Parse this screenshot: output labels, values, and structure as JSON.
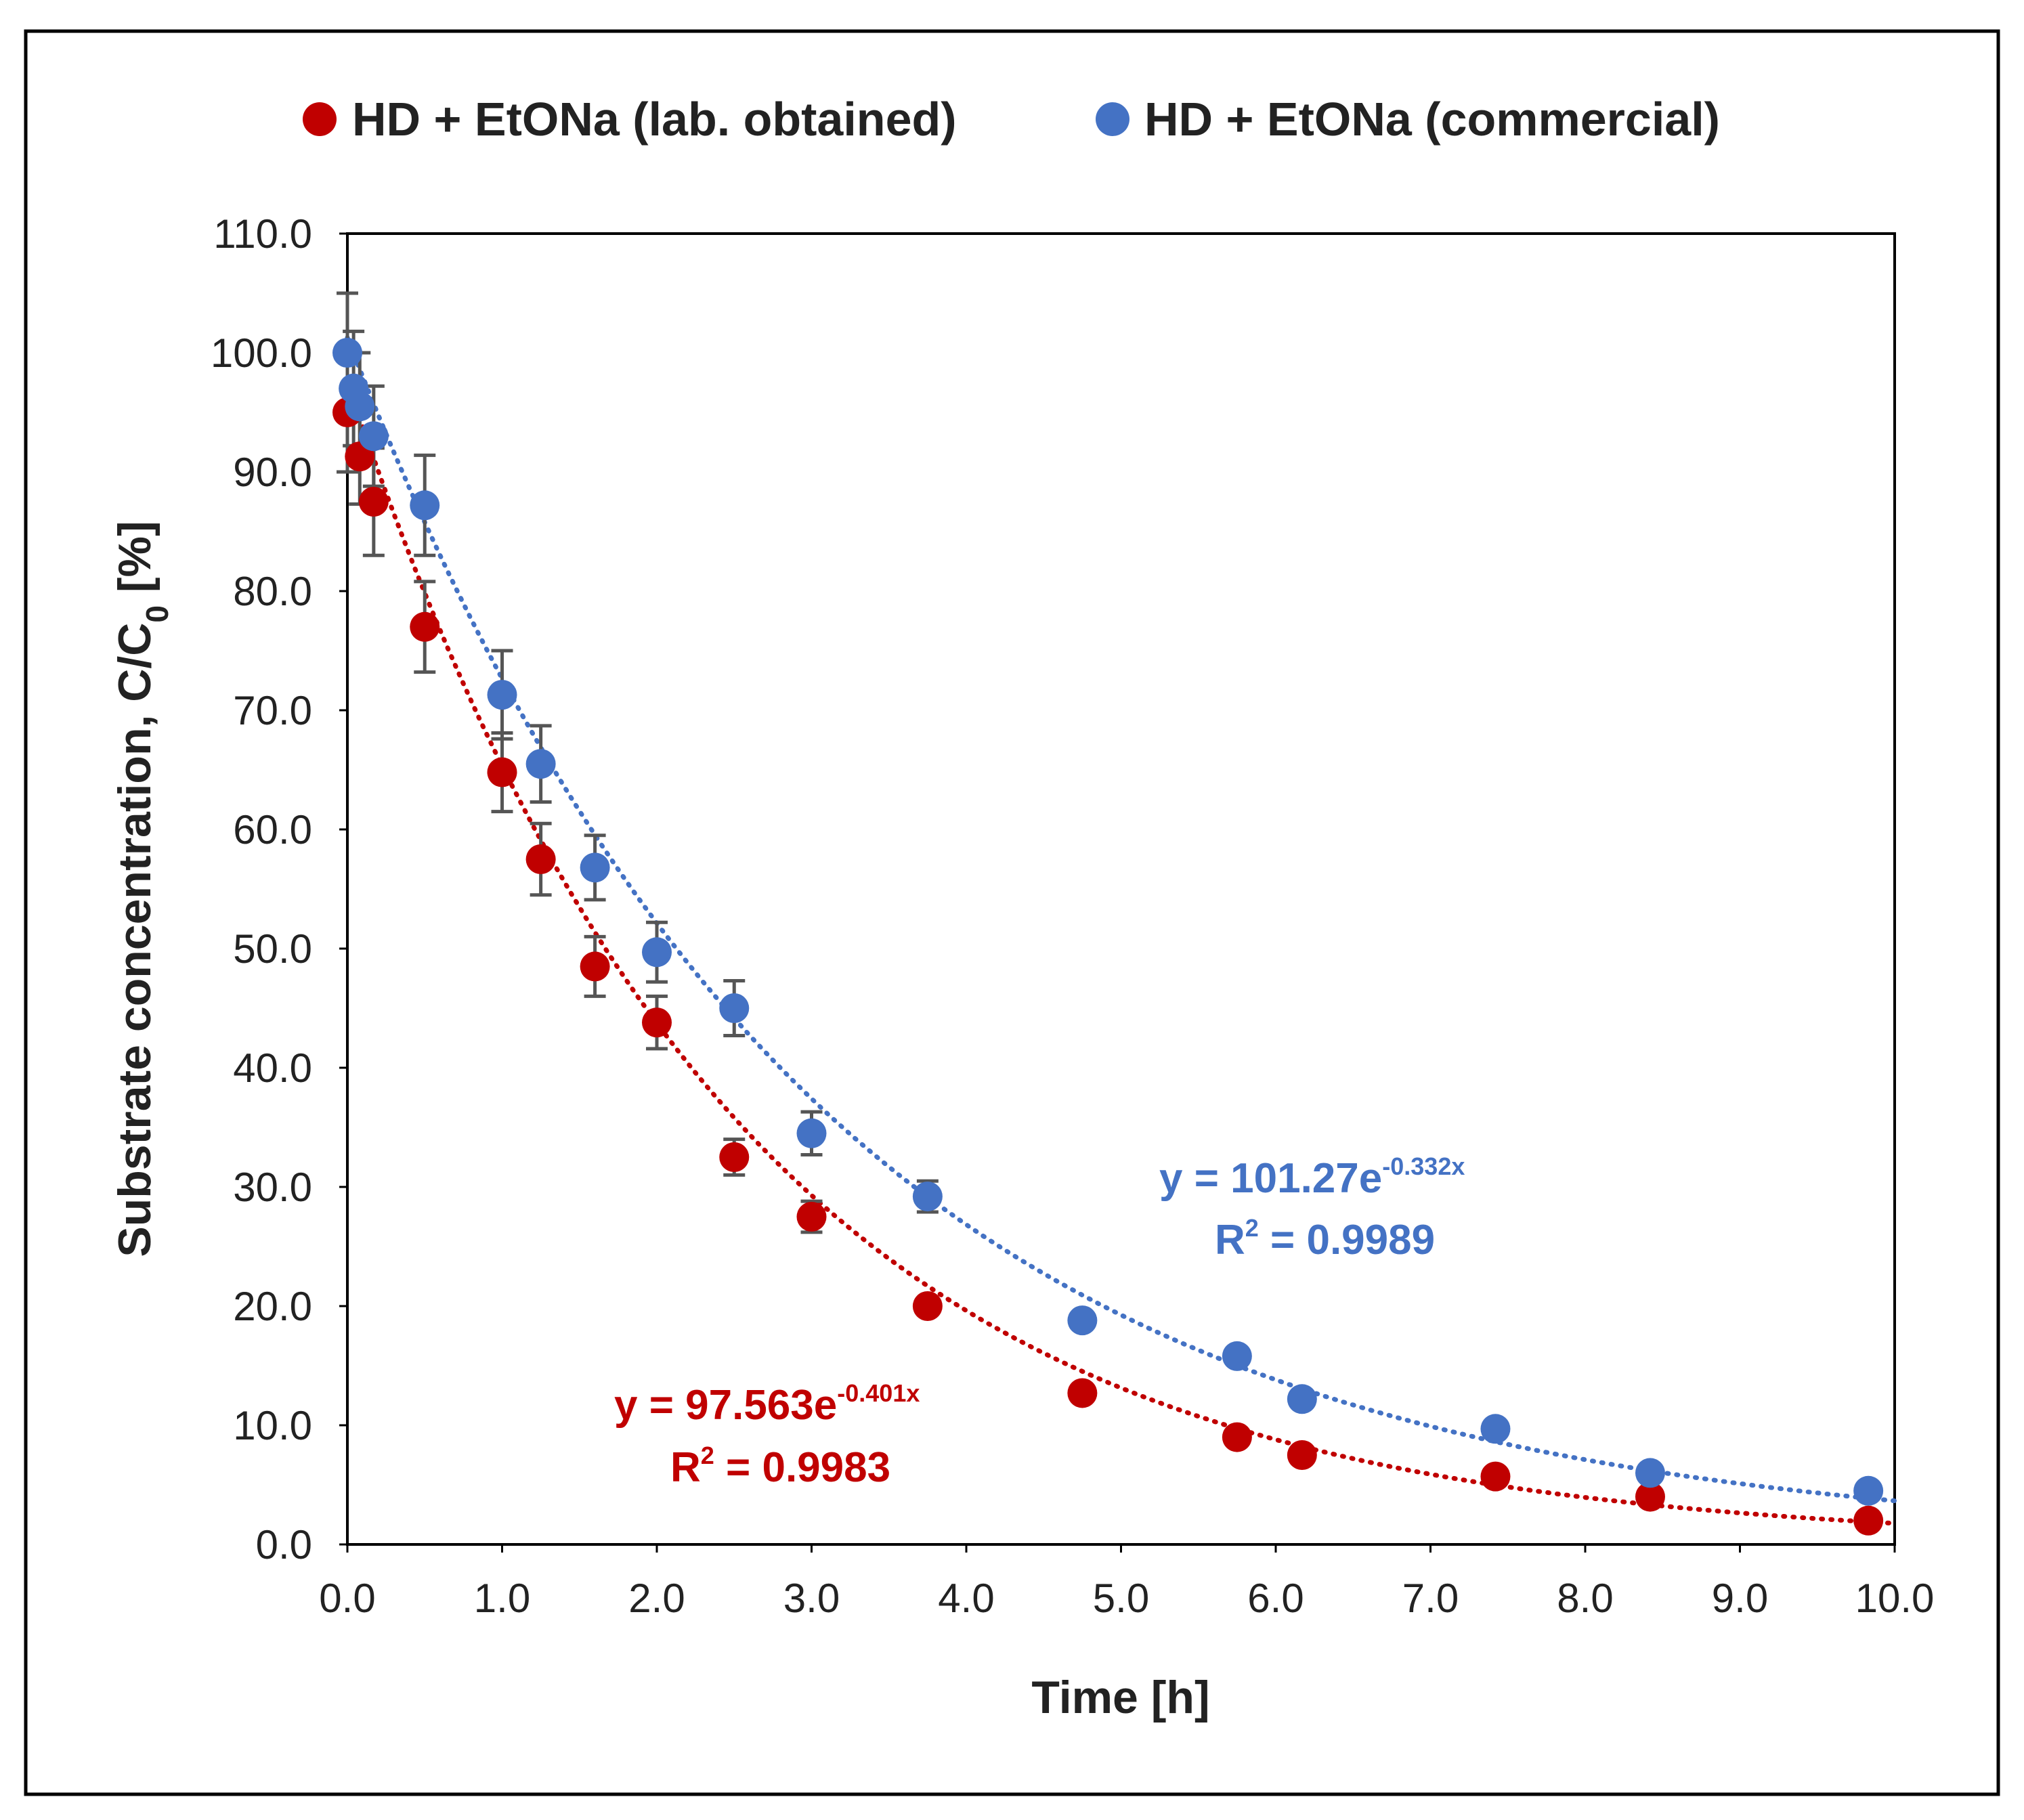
{
  "chart_data": {
    "type": "scatter",
    "xlabel": "Time [h]",
    "ylabel_main": "Substrate concentration, C/C",
    "ylabel_sub": "0",
    "ylabel_tail": " [%]",
    "xlim": [
      0,
      10
    ],
    "ylim": [
      0,
      110
    ],
    "x_ticks": [
      "0.0",
      "1.0",
      "2.0",
      "3.0",
      "4.0",
      "5.0",
      "6.0",
      "7.0",
      "8.0",
      "9.0",
      "10.0"
    ],
    "y_ticks": [
      "0.0",
      "10.0",
      "20.0",
      "30.0",
      "40.0",
      "50.0",
      "60.0",
      "70.0",
      "80.0",
      "90.0",
      "100.0",
      "110.0"
    ],
    "grid": false,
    "legend_position": "top",
    "series": [
      {
        "name": "HD + EtONa (lab. obtained)",
        "color": "#c00000",
        "x": [
          0.0,
          0.08,
          0.17,
          0.5,
          1.0,
          1.25,
          1.6,
          2.0,
          2.5,
          3.0,
          3.75,
          4.75,
          5.75,
          6.17,
          7.42,
          8.42,
          9.83
        ],
        "y": [
          95.0,
          91.3,
          87.5,
          77.0,
          64.8,
          57.5,
          48.5,
          43.8,
          32.5,
          27.5,
          20.0,
          12.7,
          9.0,
          7.5,
          5.7,
          4.0,
          2.0
        ],
        "error": [
          5.0,
          4.0,
          4.5,
          3.8,
          3.3,
          3.0,
          2.5,
          2.2,
          1.5,
          1.3,
          0,
          0,
          0,
          0,
          0,
          0,
          0
        ],
        "fit": {
          "a": 97.563,
          "b": -0.401
        },
        "equation_prefix": "y = 97.563e",
        "equation_exp": "-0.401x",
        "r2_prefix": "R",
        "r2_exp": "2",
        "r2_value": " = 0.9983"
      },
      {
        "name": "HD + EtONa (commercial)",
        "color": "#4472c4",
        "x": [
          0.0,
          0.04,
          0.08,
          0.17,
          0.5,
          1.0,
          1.25,
          1.6,
          2.0,
          2.5,
          3.0,
          3.75,
          4.75,
          5.75,
          6.17,
          7.42,
          8.42,
          9.83
        ],
        "y": [
          100.0,
          97.0,
          95.5,
          93.0,
          87.2,
          71.3,
          65.5,
          56.8,
          49.7,
          45.0,
          34.5,
          29.2,
          18.8,
          15.8,
          12.2,
          9.7,
          6.0,
          4.5
        ],
        "error": [
          5.0,
          4.8,
          4.5,
          4.2,
          4.2,
          3.7,
          3.2,
          2.7,
          2.5,
          2.3,
          1.8,
          1.3,
          0,
          0,
          0,
          0,
          0,
          0
        ],
        "fit": {
          "a": 101.27,
          "b": -0.332
        },
        "equation_prefix": "y = 101.27e",
        "equation_exp": "-0.332x",
        "r2_prefix": "R",
        "r2_exp": "2",
        "r2_value": " = 0.9989"
      }
    ]
  }
}
